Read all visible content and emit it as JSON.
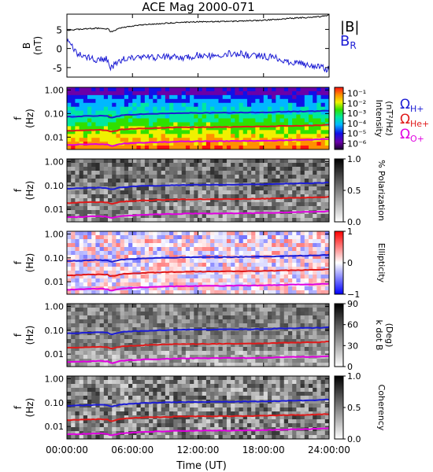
{
  "figure": {
    "title": "ACE Mag 2000-071",
    "x_axis": {
      "ticks": [
        "00:00:00",
        "06:00:00",
        "12:00:00",
        "18:00:00",
        "24:00:00"
      ],
      "tick_hours": [
        0,
        6,
        12,
        18,
        24
      ],
      "label": "Time (UT)",
      "range_hours": [
        0,
        24
      ]
    },
    "freq_axis": {
      "label_top": "f",
      "label_bottom": "(Hz)",
      "ticks": [
        "1.00",
        "0.10",
        "0.01"
      ],
      "tick_values": [
        1.0,
        0.1,
        0.01
      ],
      "range_hz": [
        0.003,
        1.3
      ],
      "scale": "log"
    },
    "line_legend": [
      {
        "label": "|B|",
        "color": "#000000"
      },
      {
        "label": "B",
        "sub": "R",
        "color": "#1c1cd4"
      }
    ],
    "gyro_legend": [
      {
        "symbol": "Ω",
        "sub": "H+",
        "color": "#1c1cd4"
      },
      {
        "symbol": "Ω",
        "sub": "He+",
        "color": "#e01a1a"
      },
      {
        "symbol": "Ω",
        "sub": "O+",
        "color": "#e000e0"
      }
    ],
    "colors": {
      "blue": "#1c1cd4",
      "red": "#e01a1a",
      "magenta": "#e000e0",
      "black": "#000000"
    }
  },
  "chart_data": [
    {
      "type": "line",
      "title": "",
      "ylabel": "B (nT)",
      "ylabel_top": "B",
      "ylabel_bottom": "(nT)",
      "ylim": [
        -7.5,
        9
      ],
      "yticks": [
        5,
        0,
        -5
      ],
      "x_hours": [
        0,
        1,
        2,
        3,
        3.8,
        4,
        4.5,
        5,
        6,
        7,
        8,
        9,
        10,
        11,
        12,
        13,
        14,
        15,
        16,
        17,
        18,
        19,
        20,
        21,
        22,
        23,
        24
      ],
      "series": [
        {
          "name": "|B|",
          "color": "#000000",
          "values": [
            4.8,
            5.0,
            5.2,
            5.3,
            5.1,
            4.3,
            4.9,
            5.5,
            5.9,
            6.2,
            6.4,
            6.6,
            6.8,
            6.9,
            7.0,
            7.0,
            7.1,
            7.1,
            7.2,
            7.3,
            7.4,
            7.6,
            7.8,
            8.0,
            8.1,
            8.3,
            8.8
          ]
        },
        {
          "name": "B_R",
          "color": "#1c1cd4",
          "values": [
            2.0,
            -1.5,
            -2.5,
            -3.0,
            -2.8,
            -5.5,
            -3.5,
            -3.0,
            -2.5,
            -2.3,
            -2.5,
            -2.2,
            -2.4,
            -2.3,
            -1.8,
            -2.0,
            -1.5,
            -1.2,
            -1.5,
            -1.8,
            -2.0,
            -2.5,
            -3.2,
            -3.8,
            -4.2,
            -4.8,
            -5.5
          ]
        }
      ]
    },
    {
      "type": "heatmap",
      "title": "",
      "ylabel": "f (Hz)",
      "colorbar": {
        "label": "Intensity (nT²/Hz)",
        "label_main": "Intensity",
        "label_unit": "(nT²/Hz)",
        "ticks": [
          "10⁻¹",
          "10⁻²",
          "10⁻³",
          "10⁻⁴",
          "10⁻⁵",
          "10⁻⁶"
        ],
        "tick_exponents": [
          -1,
          -2,
          -3,
          -4,
          -5,
          -6
        ],
        "range_exponent": [
          -6.6,
          -0.4
        ],
        "scale": "log"
      },
      "lines": [
        "H+",
        "He+",
        "O+"
      ]
    },
    {
      "type": "heatmap",
      "title": "",
      "ylabel": "f (Hz)",
      "colorbar": {
        "label": "% Polarization",
        "ticks": [
          "1.0",
          "0.5",
          "0.0"
        ],
        "tick_values": [
          1.0,
          0.5,
          0.0
        ],
        "range": [
          0,
          1
        ]
      },
      "lines": [
        "H+",
        "He+",
        "O+"
      ]
    },
    {
      "type": "heatmap",
      "title": "",
      "ylabel": "f (Hz)",
      "colorbar": {
        "label": "Ellipticity",
        "ticks": [
          "1",
          "0",
          "−1"
        ],
        "tick_values": [
          1,
          0,
          -1
        ],
        "range": [
          -1,
          1
        ]
      },
      "lines": [
        "H+",
        "He+",
        "O+"
      ]
    },
    {
      "type": "heatmap",
      "title": "",
      "ylabel": "f (Hz)",
      "colorbar": {
        "label": "k dot B (Deg)",
        "label_main": "k dot B",
        "label_unit": "(Deg)",
        "ticks": [
          "90",
          "60",
          "30",
          "0"
        ],
        "tick_values": [
          90,
          60,
          30,
          0
        ],
        "range": [
          0,
          90
        ]
      },
      "lines": [
        "H+",
        "He+",
        "O+"
      ]
    },
    {
      "type": "heatmap",
      "title": "",
      "ylabel": "f (Hz)",
      "colorbar": {
        "label": "Coherency",
        "ticks": [
          "1.0",
          "0.5",
          "0.0"
        ],
        "tick_values": [
          1.0,
          0.5,
          0.0
        ],
        "range": [
          0,
          1
        ]
      },
      "lines": [
        "H+",
        "He+",
        "O+"
      ]
    }
  ],
  "gyrofrequency_hz": {
    "x_hours": [
      0,
      1,
      2,
      3,
      3.8,
      4,
      4.5,
      5,
      6,
      7,
      8,
      9,
      10,
      11,
      12,
      13,
      14,
      15,
      16,
      17,
      18,
      19,
      20,
      21,
      22,
      23,
      24
    ],
    "H+": [
      0.073,
      0.076,
      0.079,
      0.081,
      0.078,
      0.066,
      0.075,
      0.084,
      0.09,
      0.095,
      0.098,
      0.101,
      0.104,
      0.105,
      0.107,
      0.107,
      0.108,
      0.108,
      0.11,
      0.111,
      0.113,
      0.116,
      0.119,
      0.122,
      0.124,
      0.127,
      0.134
    ],
    "He+": [
      0.0183,
      0.0191,
      0.0198,
      0.0202,
      0.0195,
      0.0164,
      0.0187,
      0.021,
      0.0225,
      0.0236,
      0.0244,
      0.0252,
      0.0259,
      0.0263,
      0.0267,
      0.0267,
      0.0271,
      0.0271,
      0.0274,
      0.0278,
      0.0282,
      0.029,
      0.0297,
      0.0305,
      0.0309,
      0.0316,
      0.0335
    ],
    "O+": [
      0.0046,
      0.0048,
      0.005,
      0.0051,
      0.0049,
      0.0041,
      0.0047,
      0.0052,
      0.0056,
      0.0059,
      0.0061,
      0.0063,
      0.0065,
      0.0066,
      0.0067,
      0.0067,
      0.0068,
      0.0068,
      0.0069,
      0.0069,
      0.0071,
      0.0072,
      0.0074,
      0.0076,
      0.0077,
      0.0079,
      0.0084
    ]
  }
}
